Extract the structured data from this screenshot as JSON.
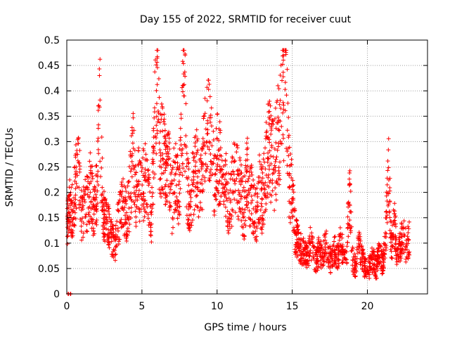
{
  "chart_data": {
    "type": "scatter",
    "title": "Day 155 of 2022, SRMTID for receiver cuut",
    "xlabel": "GPS time / hours",
    "ylabel": "SRMTID / TECUs",
    "xlim": [
      0,
      24
    ],
    "ylim": [
      0,
      0.5
    ],
    "grid": true,
    "marker": "+",
    "color": "#ff0000",
    "x_ticks": [
      0,
      5,
      10,
      15,
      20
    ],
    "x_tick_labels": [
      "0",
      "5",
      "10",
      "15",
      "20"
    ],
    "y_ticks": [
      0,
      0.05,
      0.1,
      0.15,
      0.2,
      0.25,
      0.3,
      0.35,
      0.4,
      0.45,
      0.5
    ],
    "y_tick_labels": [
      "0",
      "0.05",
      "0.1",
      "0.15",
      "0.2",
      "0.25",
      "0.3",
      "0.35",
      "0.4",
      "0.45",
      "0.5"
    ],
    "series": [
      {
        "name": "SRMTID",
        "x": [
          0.0,
          0.2,
          0.4,
          0.6,
          0.8,
          1.0,
          1.2,
          1.4,
          1.6,
          1.8,
          2.0,
          2.2,
          2.4,
          2.6,
          2.8,
          3.0,
          3.2,
          3.4,
          3.6,
          3.8,
          4.0,
          4.2,
          4.4,
          4.6,
          4.8,
          5.0,
          5.2,
          5.4,
          5.6,
          5.8,
          6.0,
          6.2,
          6.4,
          6.6,
          6.8,
          7.0,
          7.2,
          7.4,
          7.6,
          7.8,
          8.0,
          8.2,
          8.4,
          8.6,
          8.8,
          9.0,
          9.2,
          9.4,
          9.6,
          9.8,
          10.0,
          10.2,
          10.4,
          10.6,
          10.8,
          11.0,
          11.2,
          11.4,
          11.6,
          11.8,
          12.0,
          12.2,
          12.4,
          12.6,
          12.8,
          13.0,
          13.2,
          13.4,
          13.6,
          13.8,
          14.0,
          14.2,
          14.4,
          14.6,
          14.8,
          15.0,
          15.2,
          15.4,
          15.6,
          15.8,
          16.0,
          16.2,
          16.4,
          16.6,
          16.8,
          17.0,
          17.2,
          17.4,
          17.6,
          17.8,
          18.0,
          18.2,
          18.4,
          18.6,
          18.8,
          19.0,
          19.2,
          19.4,
          19.6,
          19.8,
          20.0,
          20.2,
          20.4,
          20.6,
          20.8,
          21.0,
          21.2,
          21.4,
          21.6,
          21.8,
          22.0,
          22.2,
          22.4,
          22.6,
          22.8
        ],
        "y": [
          0.12,
          0.18,
          0.16,
          0.22,
          0.24,
          0.14,
          0.17,
          0.19,
          0.21,
          0.16,
          0.2,
          0.36,
          0.16,
          0.15,
          0.13,
          0.11,
          0.09,
          0.14,
          0.16,
          0.18,
          0.15,
          0.2,
          0.27,
          0.18,
          0.22,
          0.19,
          0.24,
          0.21,
          0.13,
          0.28,
          0.46,
          0.26,
          0.3,
          0.22,
          0.25,
          0.18,
          0.24,
          0.2,
          0.27,
          0.44,
          0.21,
          0.18,
          0.22,
          0.26,
          0.2,
          0.24,
          0.29,
          0.33,
          0.28,
          0.23,
          0.27,
          0.25,
          0.2,
          0.22,
          0.17,
          0.2,
          0.24,
          0.21,
          0.19,
          0.16,
          0.23,
          0.2,
          0.18,
          0.15,
          0.21,
          0.18,
          0.23,
          0.3,
          0.27,
          0.25,
          0.3,
          0.34,
          0.38,
          0.44,
          0.22,
          0.2,
          0.12,
          0.1,
          0.09,
          0.08,
          0.07,
          0.1,
          0.08,
          0.06,
          0.09,
          0.07,
          0.1,
          0.08,
          0.06,
          0.09,
          0.07,
          0.1,
          0.08,
          0.06,
          0.22,
          0.07,
          0.05,
          0.1,
          0.08,
          0.05,
          0.04,
          0.06,
          0.07,
          0.05,
          0.08,
          0.06,
          0.1,
          0.25,
          0.09,
          0.14,
          0.07,
          0.1,
          0.12,
          0.09,
          0.11
        ],
        "marker_count": 2400
      }
    ],
    "outliers_near_zero": [
      0.1,
      0.25
    ]
  }
}
